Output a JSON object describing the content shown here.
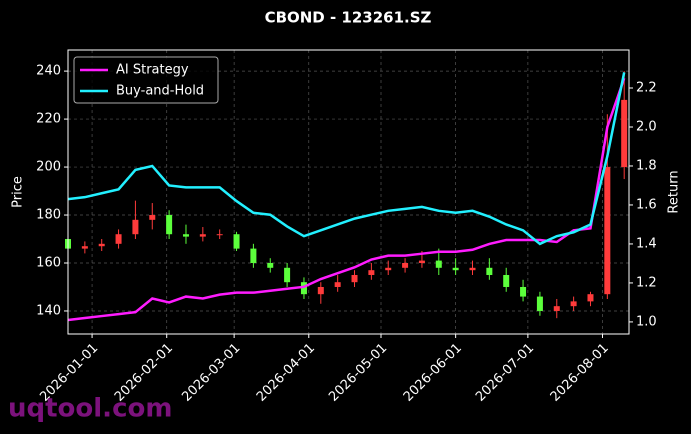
{
  "chart_data": {
    "type": "candlestick",
    "title": "CBOND - 123261.SZ",
    "ylabel": "Price",
    "y2label": "Return",
    "watermark": "uqtool.com",
    "x": [
      "2025-12-22",
      "2025-12-29",
      "2026-01-05",
      "2026-01-12",
      "2026-01-19",
      "2026-01-26",
      "2026-02-02",
      "2026-02-09",
      "2026-02-16",
      "2026-02-23",
      "2026-03-02",
      "2026-03-09",
      "2026-03-16",
      "2026-03-23",
      "2026-03-30",
      "2026-04-06",
      "2026-04-13",
      "2026-04-20",
      "2026-04-27",
      "2026-05-04",
      "2026-05-11",
      "2026-05-18",
      "2026-05-25",
      "2026-06-01",
      "2026-06-08",
      "2026-06-15",
      "2026-06-22",
      "2026-06-29",
      "2026-07-06",
      "2026-07-13",
      "2026-07-20",
      "2026-07-27",
      "2026-08-03",
      "2026-08-10"
    ],
    "open": [
      170,
      166,
      167,
      168,
      172,
      178,
      180,
      172,
      171,
      172,
      172,
      166,
      160,
      158,
      152,
      147,
      150,
      152,
      155,
      157,
      158,
      160,
      161,
      158,
      157,
      158,
      155,
      150,
      146,
      140,
      142,
      144,
      147,
      200
    ],
    "high": [
      178,
      169,
      170,
      174,
      186,
      185,
      182,
      176,
      175,
      174,
      173,
      168,
      162,
      160,
      154,
      152,
      155,
      157,
      160,
      161,
      162,
      165,
      166,
      162,
      161,
      162,
      158,
      153,
      148,
      145,
      146,
      148,
      222,
      240
    ],
    "low": [
      162,
      164,
      165,
      166,
      170,
      174,
      170,
      168,
      169,
      170,
      165,
      158,
      156,
      150,
      145,
      143,
      148,
      150,
      153,
      155,
      156,
      158,
      155,
      155,
      155,
      153,
      148,
      144,
      138,
      137,
      140,
      142,
      145,
      195
    ],
    "close": [
      166,
      167,
      168,
      172,
      178,
      180,
      172,
      171,
      172,
      172,
      166,
      160,
      158,
      152,
      147,
      150,
      152,
      155,
      157,
      158,
      160,
      161,
      158,
      157,
      158,
      155,
      150,
      146,
      140,
      142,
      144,
      147,
      200,
      228
    ],
    "up_color": "#ff3b3b",
    "down_color": "#5cff3c",
    "series": [
      {
        "name": "AI Strategy",
        "color": "#ff1cff",
        "axis": "y2",
        "values": [
          1.01,
          1.02,
          1.03,
          1.04,
          1.05,
          1.12,
          1.1,
          1.13,
          1.12,
          1.14,
          1.15,
          1.15,
          1.16,
          1.17,
          1.18,
          1.22,
          1.25,
          1.28,
          1.32,
          1.34,
          1.34,
          1.35,
          1.36,
          1.36,
          1.37,
          1.4,
          1.42,
          1.42,
          1.42,
          1.41,
          1.47,
          1.48,
          2.0,
          2.25
        ]
      },
      {
        "name": "Buy-and-Hold",
        "color": "#22f0ff",
        "axis": "y2",
        "values": [
          1.63,
          1.64,
          1.66,
          1.68,
          1.78,
          1.8,
          1.7,
          1.69,
          1.69,
          1.69,
          1.62,
          1.56,
          1.55,
          1.49,
          1.44,
          1.47,
          1.5,
          1.53,
          1.55,
          1.57,
          1.58,
          1.59,
          1.57,
          1.56,
          1.57,
          1.54,
          1.5,
          1.47,
          1.4,
          1.44,
          1.46,
          1.5,
          1.85,
          2.28
        ]
      }
    ],
    "xlim": [
      "2025-12-22",
      "2026-08-12"
    ],
    "xticks": [
      "2026-01-01",
      "2026-02-01",
      "2026-03-01",
      "2026-04-01",
      "2026-05-01",
      "2026-06-01",
      "2026-07-01",
      "2026-08-01"
    ],
    "ylim": [
      130.4,
      248.8
    ],
    "yticks": [
      140,
      160,
      180,
      200,
      220,
      240
    ],
    "y2lim": [
      0.938,
      2.395
    ],
    "y2ticks": [
      {
        "value": 1.0,
        "label": "1.0"
      },
      {
        "value": 1.2,
        "label": "1.2"
      },
      {
        "value": 1.4,
        "label": "1.4"
      },
      {
        "value": 1.6,
        "label": "1.6"
      },
      {
        "value": 1.8,
        "label": "1.8"
      },
      {
        "value": 2.0,
        "label": "2.0"
      },
      {
        "value": 2.2,
        "label": "2.2"
      }
    ],
    "grid": true,
    "legend": "upper left"
  }
}
